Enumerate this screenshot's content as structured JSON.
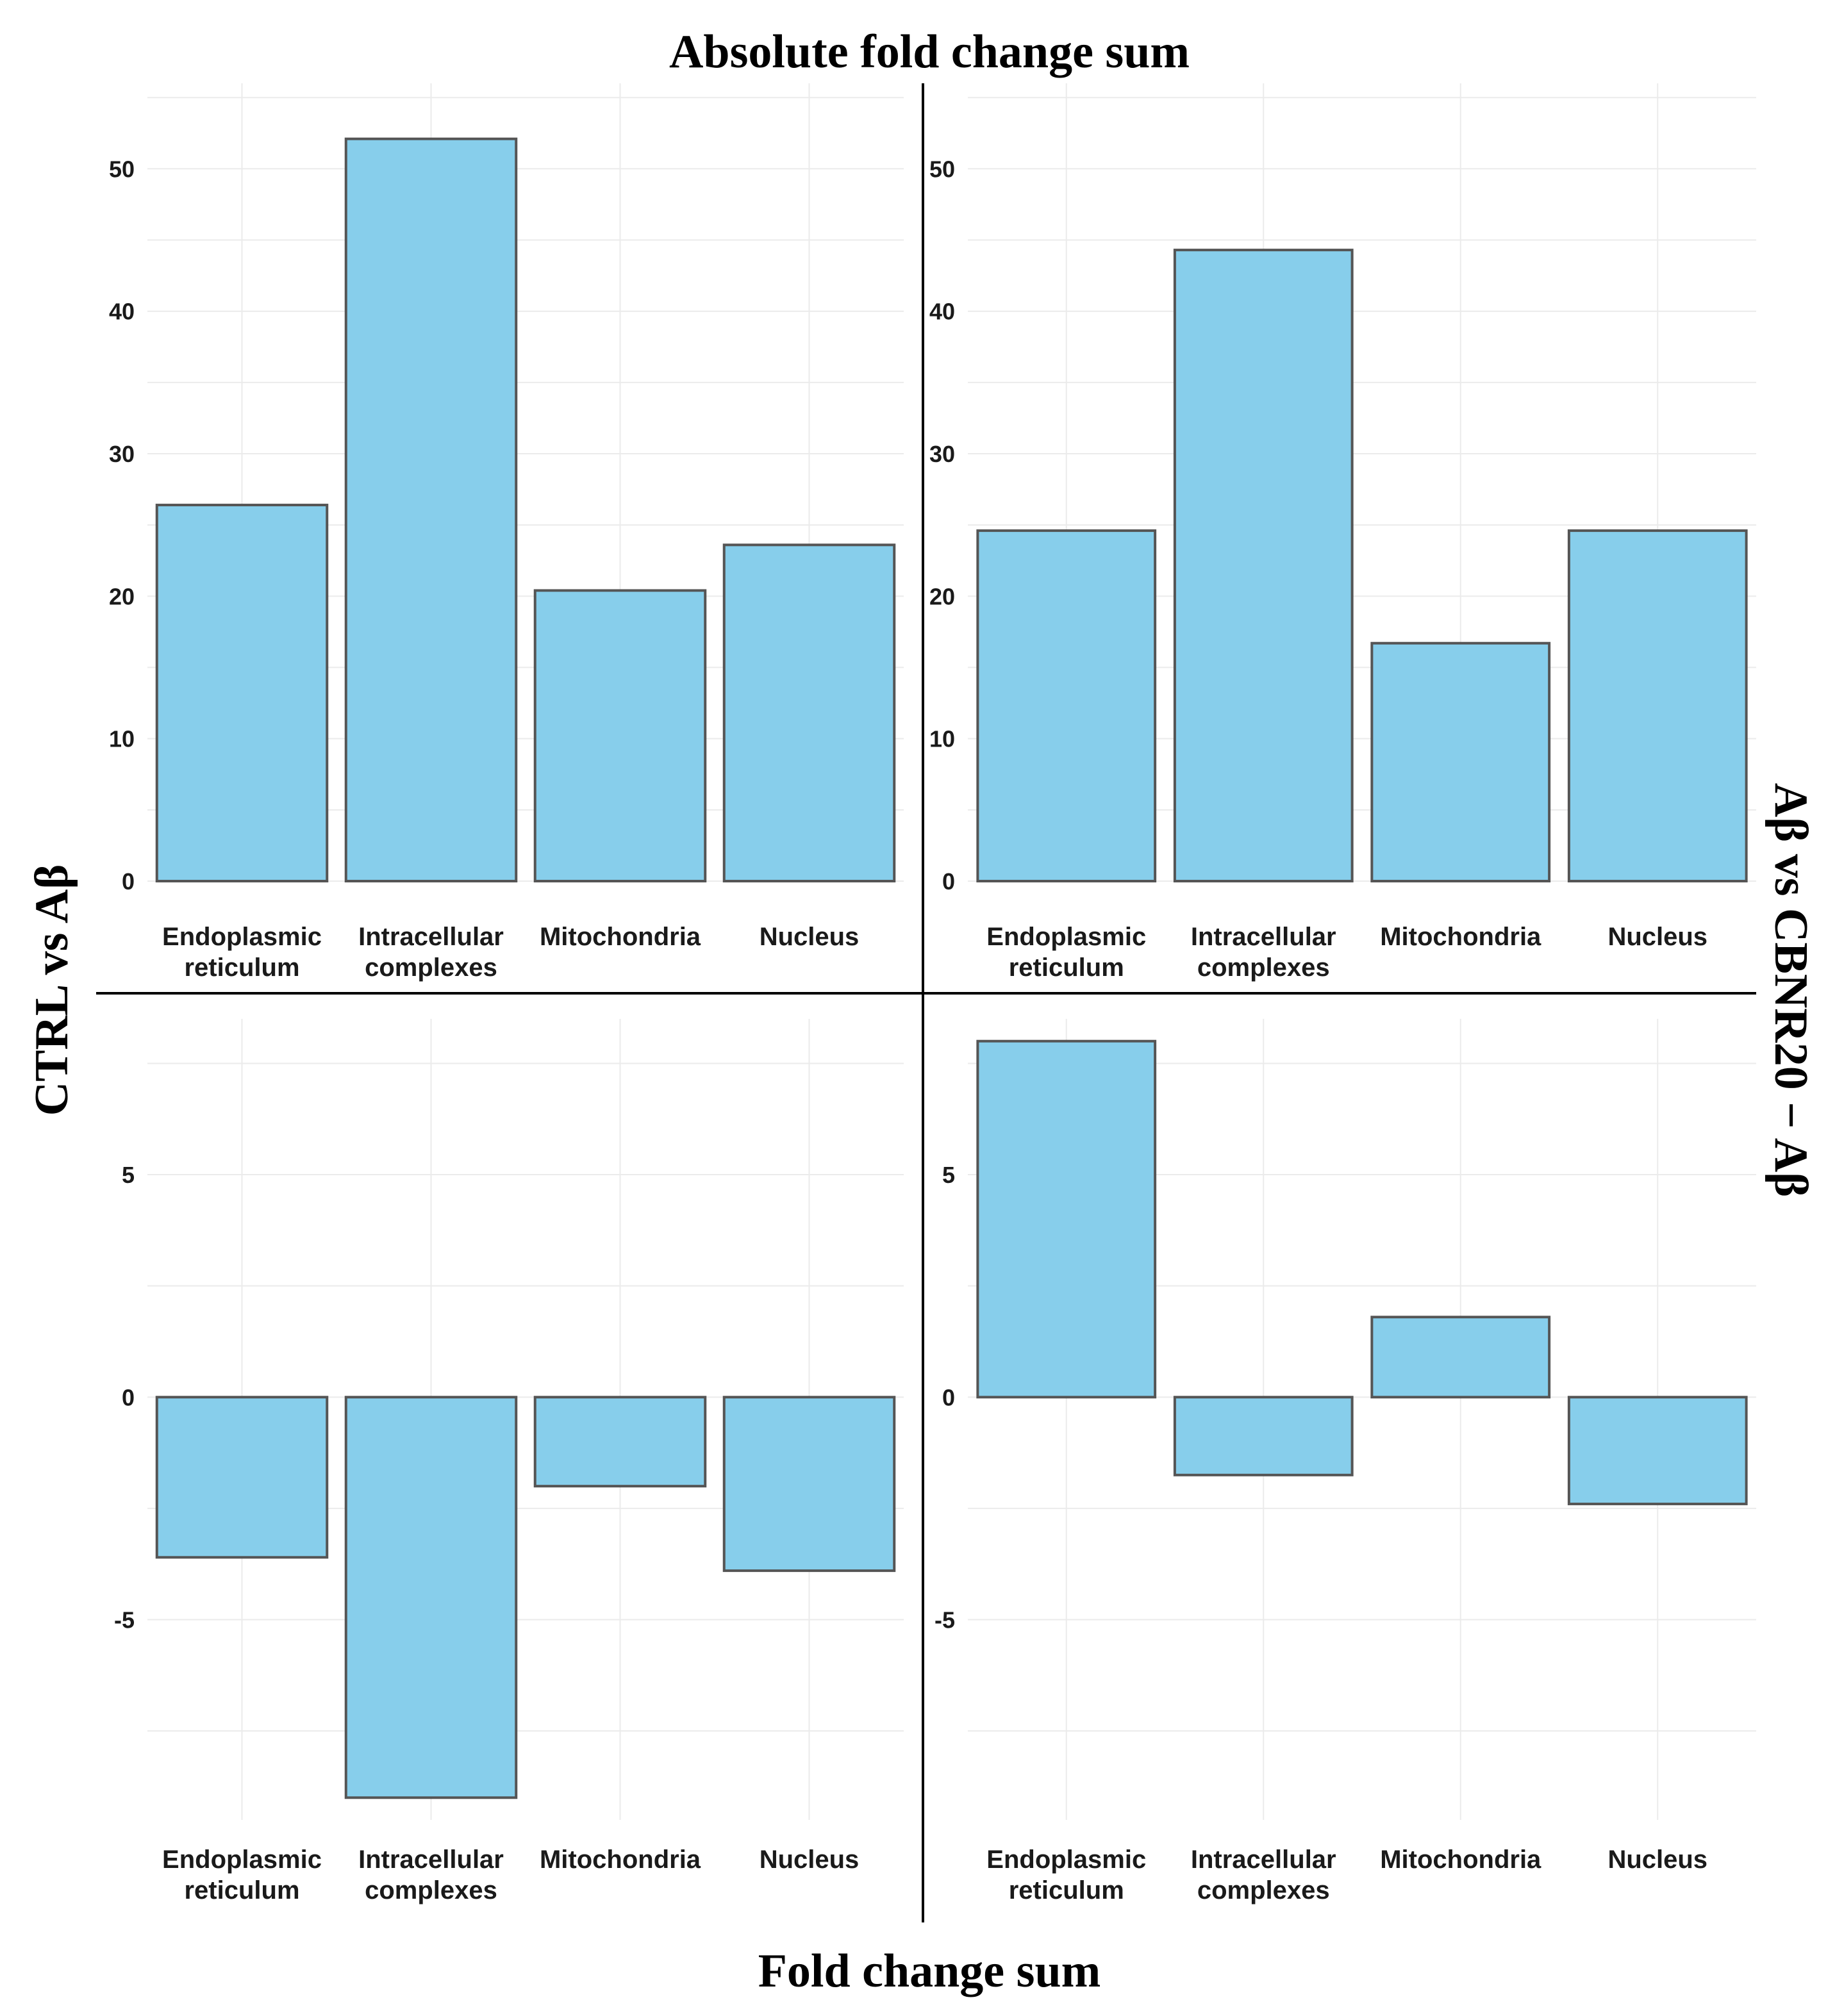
{
  "colors": {
    "bar_fill": "#87ceeb",
    "bar_stroke": "#555555",
    "grid": "#ebebeb",
    "divider": "#000000"
  },
  "titles": {
    "top": "Absolute fold change sum",
    "bottom": "Fold change sum",
    "left": "CTRL vs Aβ",
    "right": "Aβ vs CBNR20 − Aβ"
  },
  "chart_data": [
    {
      "id": "top-left",
      "type": "bar",
      "title": "Absolute fold change sum",
      "row_label": "CTRL vs Aβ",
      "categories": [
        [
          "Endoplasmic",
          "reticulum"
        ],
        [
          "Intracellular",
          "complexes"
        ],
        [
          "Mitochondria"
        ],
        [
          "Nucleus"
        ]
      ],
      "values": [
        26.4,
        52.1,
        20.4,
        23.6
      ],
      "ylim": [
        0,
        56
      ],
      "yticks": [
        0,
        10,
        20,
        30,
        40,
        50
      ]
    },
    {
      "id": "top-right",
      "type": "bar",
      "title": "Absolute fold change sum",
      "row_label": "Aβ vs CBNR20 − Aβ",
      "categories": [
        [
          "Endoplasmic",
          "reticulum"
        ],
        [
          "Intracellular",
          "complexes"
        ],
        [
          "Mitochondria"
        ],
        [
          "Nucleus"
        ]
      ],
      "values": [
        24.6,
        44.3,
        16.7,
        24.6
      ],
      "ylim": [
        0,
        56
      ],
      "yticks": [
        0,
        10,
        20,
        30,
        40,
        50
      ]
    },
    {
      "id": "bottom-left",
      "type": "bar",
      "title": "Fold change sum",
      "row_label": "CTRL vs Aβ",
      "categories": [
        [
          "Endoplasmic",
          "reticulum"
        ],
        [
          "Intracellular",
          "complexes"
        ],
        [
          "Mitochondria"
        ],
        [
          "Nucleus"
        ]
      ],
      "values": [
        -3.6,
        -9.0,
        -2.0,
        -3.9
      ],
      "ylim": [
        -9.5,
        8.5
      ],
      "yticks": [
        -5,
        0,
        5
      ]
    },
    {
      "id": "bottom-right",
      "type": "bar",
      "title": "Fold change sum",
      "row_label": "Aβ vs CBNR20 − Aβ",
      "categories": [
        [
          "Endoplasmic",
          "reticulum"
        ],
        [
          "Intracellular",
          "complexes"
        ],
        [
          "Mitochondria"
        ],
        [
          "Nucleus"
        ]
      ],
      "values": [
        8.0,
        -1.75,
        1.8,
        -2.4
      ],
      "ylim": [
        -9.5,
        8.5
      ],
      "yticks": [
        -5,
        0,
        5
      ]
    }
  ]
}
